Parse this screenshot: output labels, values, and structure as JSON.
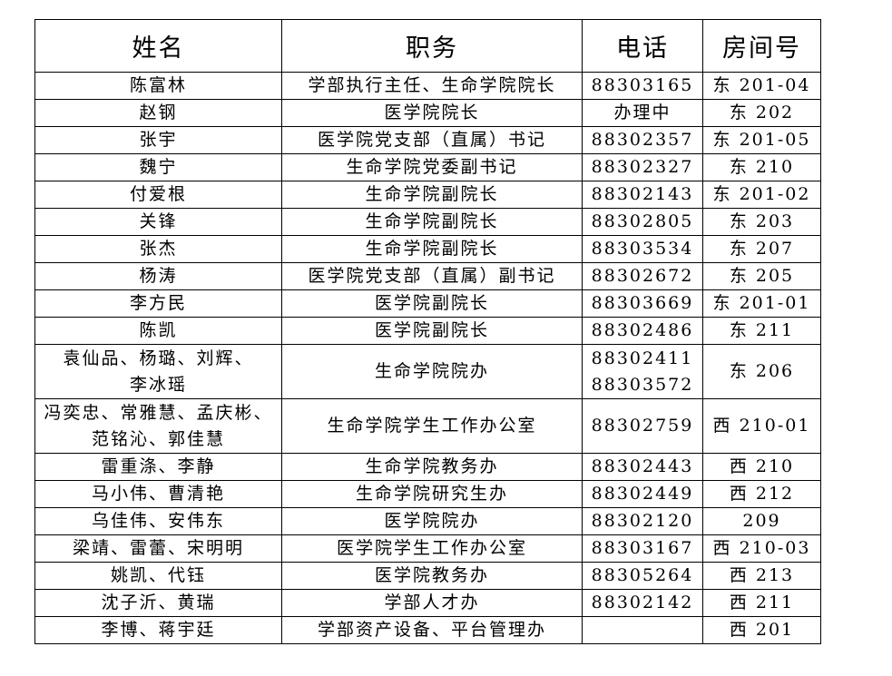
{
  "headers": [
    "姓名",
    "职务",
    "电话",
    "房间号"
  ],
  "rows": [
    {
      "name": [
        "陈富林"
      ],
      "title": "学部执行主任、生命学院院长",
      "phone": [
        "88303165"
      ],
      "room": "东 201-04"
    },
    {
      "name": [
        "赵钢"
      ],
      "title": "医学院院长",
      "phone": [
        "办理中"
      ],
      "room": "东 202"
    },
    {
      "name": [
        "张宇"
      ],
      "title": "医学院党支部（直属）书记",
      "phone": [
        "88302357"
      ],
      "room": "东 201-05"
    },
    {
      "name": [
        "魏宁"
      ],
      "title": "生命学院党委副书记",
      "phone": [
        "88302327"
      ],
      "room": "东 210"
    },
    {
      "name": [
        "付爱根"
      ],
      "title": "生命学院副院长",
      "phone": [
        "88302143"
      ],
      "room": "东 201-02"
    },
    {
      "name": [
        "关锋"
      ],
      "title": "生命学院副院长",
      "phone": [
        "88302805"
      ],
      "room": "东 203"
    },
    {
      "name": [
        "张杰"
      ],
      "title": "生命学院副院长",
      "phone": [
        "88303534"
      ],
      "room": "东 207"
    },
    {
      "name": [
        "杨涛"
      ],
      "title": "医学院党支部（直属）副书记",
      "phone": [
        "88302672"
      ],
      "room": "东 205"
    },
    {
      "name": [
        "李方民"
      ],
      "title": "医学院副院长",
      "phone": [
        "88303669"
      ],
      "room": "东 201-01"
    },
    {
      "name": [
        "陈凯"
      ],
      "title": "医学院副院长",
      "phone": [
        "88302486"
      ],
      "room": "东 211"
    },
    {
      "name": [
        "袁仙品、杨璐、刘辉、",
        "李冰瑶"
      ],
      "title": "生命学院院办",
      "phone": [
        "88302411",
        "88303572"
      ],
      "room": "东 206"
    },
    {
      "name": [
        "冯奕忠、常雅慧、孟庆彬、",
        "范铭沁、郭佳慧"
      ],
      "title": "生命学院学生工作办公室",
      "phone": [
        "88302759"
      ],
      "room": "西 210-01"
    },
    {
      "name": [
        "雷重涤、李静"
      ],
      "title": "生命学院教务办",
      "phone": [
        "88302443"
      ],
      "room": "西 210"
    },
    {
      "name": [
        "马小伟、曹清艳"
      ],
      "title": "生命学院研究生办",
      "phone": [
        "88302449"
      ],
      "room": "西 212"
    },
    {
      "name": [
        "乌佳伟、安伟东"
      ],
      "title": "医学院院办",
      "phone": [
        "88302120"
      ],
      "room": "209"
    },
    {
      "name": [
        "梁靖、雷蕾、宋明明"
      ],
      "title": "医学院学生工作办公室",
      "phone": [
        "88303167"
      ],
      "room": "西 210-03"
    },
    {
      "name": [
        "姚凯、代钰"
      ],
      "title": "医学院教务办",
      "phone": [
        "88305264"
      ],
      "room": "西 213"
    },
    {
      "name": [
        "沈子沂、黄瑞"
      ],
      "title": "学部人才办",
      "phone": [
        "88302142"
      ],
      "room": "西 211"
    },
    {
      "name": [
        "李博、蒋宇廷"
      ],
      "title": "学部资产设备、平台管理办",
      "phone": [],
      "room": "西 201"
    }
  ]
}
